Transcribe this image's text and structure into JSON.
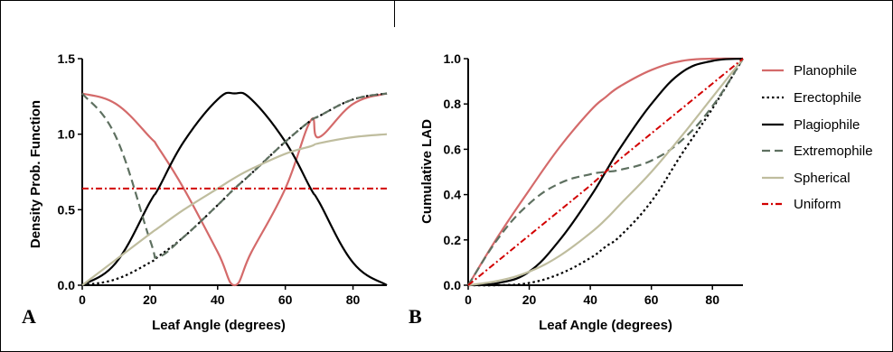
{
  "colors": {
    "Planophile": "#d46a6a",
    "Erectophile": "#000000",
    "Plagiophile": "#000000",
    "Extremophile": "#5e7060",
    "Spherical": "#bfbd9e",
    "Uniform": "#d20000"
  },
  "legend": {
    "placement": "right of panel B",
    "items": [
      "Planophile",
      "Erectophile",
      "Plagiophile",
      "Extremophile",
      "Spherical",
      "Uniform"
    ],
    "styles": [
      "solid",
      "dotted",
      "solid",
      "dashed",
      "solid",
      "dash-dot"
    ]
  },
  "chart_data": [
    {
      "panel": "A",
      "type": "line",
      "xlabel": "Leaf Angle (degrees)",
      "ylabel": "Density Prob. Function",
      "xlim": [
        0,
        90
      ],
      "ylim": [
        0,
        1.5
      ],
      "xticks": [
        "0",
        "20",
        "40",
        "60",
        "80"
      ],
      "yticks": [
        "0.0",
        "0.5",
        "1.0",
        "1.5"
      ],
      "grid": false,
      "x": [
        0,
        10,
        20,
        22.5,
        30,
        40,
        45,
        50,
        60,
        67.5,
        70,
        80,
        90
      ],
      "series": [
        {
          "name": "Planophile",
          "style": "solid",
          "values": [
            1.27,
            1.2,
            0.98,
            0.91,
            0.64,
            0.22,
            0.0,
            0.22,
            0.64,
            1.09,
            0.98,
            1.2,
            1.27
          ]
        },
        {
          "name": "Erectophile",
          "style": "dotted",
          "values": [
            0.0,
            0.04,
            0.15,
            0.19,
            0.32,
            0.53,
            0.64,
            0.74,
            0.95,
            1.09,
            1.12,
            1.23,
            1.27
          ]
        },
        {
          "name": "Plagiophile",
          "style": "solid",
          "values": [
            0.0,
            0.15,
            0.55,
            0.64,
            0.95,
            1.23,
            1.27,
            1.23,
            0.95,
            0.64,
            0.55,
            0.15,
            0.0
          ]
        },
        {
          "name": "Extremophile",
          "style": "dashed",
          "values": [
            1.27,
            0.98,
            0.3,
            0.19,
            0.32,
            0.53,
            0.64,
            0.74,
            0.95,
            1.09,
            1.12,
            1.23,
            1.27
          ]
        },
        {
          "name": "Spherical",
          "style": "solid",
          "values": [
            0.0,
            0.17,
            0.34,
            0.38,
            0.5,
            0.64,
            0.71,
            0.77,
            0.87,
            0.92,
            0.94,
            0.98,
            1.0
          ]
        },
        {
          "name": "Uniform",
          "style": "dash-dot",
          "values": [
            0.64,
            0.64,
            0.64,
            0.64,
            0.64,
            0.64,
            0.64,
            0.64,
            0.64,
            0.64,
            0.64,
            0.64,
            0.64
          ]
        }
      ]
    },
    {
      "panel": "B",
      "type": "line",
      "xlabel": "Leaf Angle (degrees)",
      "ylabel": "Cumulative LAD",
      "xlim": [
        0,
        90
      ],
      "ylim": [
        0,
        1.0
      ],
      "xticks": [
        "0",
        "20",
        "40",
        "60",
        "80"
      ],
      "yticks": [
        "0.0",
        "0.2",
        "0.4",
        "0.6",
        "0.8",
        "1.0"
      ],
      "grid": false,
      "x": [
        0,
        10,
        20,
        30,
        40,
        45,
        50,
        60,
        70,
        80,
        90
      ],
      "series": [
        {
          "name": "Planophile",
          "style": "solid",
          "values": [
            0.0,
            0.22,
            0.42,
            0.61,
            0.77,
            0.83,
            0.88,
            0.95,
            0.99,
            1.0,
            1.0
          ]
        },
        {
          "name": "Erectophile",
          "style": "dotted",
          "values": [
            0.0,
            0.0,
            0.01,
            0.05,
            0.12,
            0.17,
            0.22,
            0.37,
            0.58,
            0.78,
            1.0
          ]
        },
        {
          "name": "Plagiophile",
          "style": "solid",
          "values": [
            0.0,
            0.01,
            0.06,
            0.2,
            0.39,
            0.5,
            0.61,
            0.8,
            0.94,
            0.99,
            1.0
          ]
        },
        {
          "name": "Extremophile",
          "style": "dashed",
          "values": [
            0.0,
            0.21,
            0.36,
            0.45,
            0.49,
            0.5,
            0.51,
            0.55,
            0.64,
            0.79,
            1.0
          ]
        },
        {
          "name": "Spherical",
          "style": "solid",
          "values": [
            0.0,
            0.02,
            0.06,
            0.13,
            0.23,
            0.29,
            0.36,
            0.5,
            0.66,
            0.83,
            1.0
          ]
        },
        {
          "name": "Uniform",
          "style": "dash-dot",
          "values": [
            0.0,
            0.11,
            0.22,
            0.33,
            0.44,
            0.5,
            0.56,
            0.67,
            0.78,
            0.89,
            1.0
          ]
        }
      ]
    }
  ]
}
